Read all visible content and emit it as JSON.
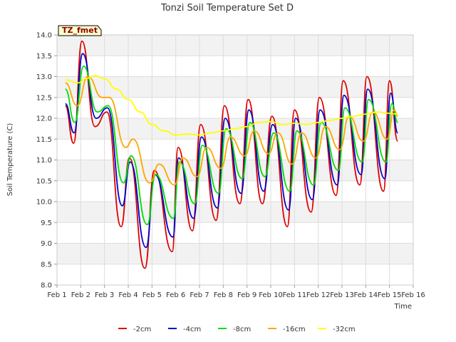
{
  "chart_data": {
    "type": "line",
    "title": "Tonzi Soil Temperature Set D",
    "xlabel": "Time",
    "ylabel": "Soil Temperature (C)",
    "site_tag": "TZ_fmet",
    "xlim": [
      1,
      16
    ],
    "ylim": [
      8.0,
      14.0
    ],
    "grid": true,
    "legend_position": "bottom",
    "x_ticks": [
      1,
      2,
      3,
      4,
      5,
      6,
      7,
      8,
      9,
      10,
      11,
      12,
      13,
      14,
      15,
      16
    ],
    "x_tick_labels": [
      "Feb 1",
      "Feb 2",
      "Feb 3",
      "Feb 4",
      "Feb 5",
      "Feb 6",
      "Feb 7",
      "Feb 8",
      "Feb 9",
      "Feb 10",
      "Feb 11",
      "Feb 12",
      "Feb 13",
      "Feb 14",
      "Feb 15",
      "Feb 16"
    ],
    "y_ticks": [
      8.0,
      8.5,
      9.0,
      9.5,
      10.0,
      10.5,
      11.0,
      11.5,
      12.0,
      12.5,
      13.0,
      13.5,
      14.0
    ],
    "y_tick_labels": [
      "8.0",
      "8.5",
      "9.0",
      "9.5",
      "10.0",
      "10.5",
      "11.0",
      "11.5",
      "12.0",
      "12.5",
      "13.0",
      "13.5",
      "14.0"
    ],
    "series": [
      {
        "name": "-2cm",
        "color": "#dd0000",
        "x": [
          1.35,
          1.7,
          2.05,
          2.6,
          3.1,
          3.7,
          4.05,
          4.7,
          5.1,
          5.85,
          6.1,
          6.7,
          7.05,
          7.7,
          8.05,
          8.7,
          9.05,
          9.65,
          10.05,
          10.7,
          11.0,
          11.7,
          12.05,
          12.75,
          13.05,
          13.75,
          14.05,
          14.75,
          15.0,
          15.35
        ],
        "y": [
          12.3,
          11.4,
          13.85,
          11.8,
          12.15,
          9.4,
          11.05,
          8.4,
          10.75,
          8.8,
          11.3,
          9.3,
          11.85,
          9.55,
          12.3,
          9.95,
          12.45,
          9.95,
          12.05,
          9.4,
          12.2,
          9.75,
          12.5,
          10.15,
          12.9,
          10.4,
          13.0,
          10.25,
          12.9,
          11.45
        ]
      },
      {
        "name": "-4cm",
        "color": "#0000cc",
        "x": [
          1.35,
          1.72,
          2.08,
          2.65,
          3.12,
          3.75,
          4.08,
          4.75,
          5.12,
          5.88,
          6.12,
          6.75,
          7.08,
          7.75,
          8.08,
          8.75,
          9.08,
          9.7,
          10.08,
          10.75,
          11.05,
          11.75,
          12.08,
          12.8,
          13.08,
          13.8,
          14.08,
          14.8,
          15.05,
          15.35
        ],
        "y": [
          12.35,
          11.65,
          13.55,
          12.0,
          12.25,
          9.9,
          10.95,
          8.9,
          10.65,
          9.15,
          11.05,
          9.6,
          11.55,
          9.85,
          12.0,
          10.2,
          12.2,
          10.25,
          11.85,
          9.8,
          12.0,
          10.05,
          12.2,
          10.4,
          12.55,
          10.65,
          12.7,
          10.55,
          12.6,
          11.65
        ]
      },
      {
        "name": "-8cm",
        "color": "#00dd00",
        "x": [
          1.35,
          1.75,
          2.12,
          2.7,
          3.15,
          3.8,
          4.12,
          4.8,
          5.15,
          5.9,
          6.15,
          6.8,
          7.12,
          7.8,
          8.12,
          8.8,
          9.12,
          9.75,
          10.12,
          10.8,
          11.1,
          11.8,
          12.12,
          12.85,
          13.12,
          13.85,
          14.12,
          14.85,
          15.1,
          15.35
        ],
        "y": [
          12.7,
          11.9,
          13.25,
          12.15,
          12.3,
          10.45,
          11.1,
          9.45,
          10.65,
          9.6,
          10.95,
          9.95,
          11.35,
          10.2,
          11.75,
          10.55,
          11.9,
          10.6,
          11.65,
          10.25,
          11.7,
          10.4,
          11.9,
          10.75,
          12.25,
          10.95,
          12.45,
          10.95,
          12.35,
          11.9
        ]
      },
      {
        "name": "-16cm",
        "color": "#ffa500",
        "x": [
          1.35,
          1.85,
          2.3,
          2.9,
          3.2,
          3.9,
          4.2,
          4.9,
          5.3,
          5.95,
          6.3,
          6.9,
          7.3,
          7.9,
          8.3,
          8.9,
          9.3,
          9.9,
          10.3,
          10.9,
          11.3,
          11.9,
          12.3,
          12.9,
          13.3,
          13.9,
          14.3,
          14.9,
          15.2,
          15.35
        ],
        "y": [
          12.85,
          12.3,
          13.0,
          12.5,
          12.5,
          11.3,
          11.5,
          10.45,
          10.9,
          10.4,
          11.05,
          10.6,
          11.3,
          10.8,
          11.55,
          11.1,
          11.7,
          11.15,
          11.65,
          10.9,
          11.65,
          11.05,
          11.8,
          11.25,
          12.05,
          11.45,
          12.15,
          11.5,
          12.2,
          12.05
        ]
      },
      {
        "name": "-32cm",
        "color": "#ffff00",
        "x": [
          1.35,
          1.9,
          2.2,
          2.6,
          3.0,
          3.5,
          4.0,
          4.5,
          5.0,
          5.5,
          6.0,
          6.5,
          7.0,
          7.5,
          8.0,
          8.5,
          9.0,
          9.5,
          10.0,
          10.5,
          11.0,
          11.5,
          12.0,
          12.5,
          13.0,
          13.5,
          14.0,
          14.5,
          15.0,
          15.35
        ],
        "y": [
          12.92,
          12.85,
          12.95,
          13.02,
          12.95,
          12.7,
          12.45,
          12.15,
          11.85,
          11.7,
          11.6,
          11.62,
          11.6,
          11.65,
          11.7,
          11.75,
          11.8,
          11.9,
          11.92,
          11.85,
          11.88,
          11.85,
          11.9,
          11.95,
          12.0,
          12.05,
          12.1,
          12.15,
          12.12,
          12.1
        ]
      }
    ]
  }
}
